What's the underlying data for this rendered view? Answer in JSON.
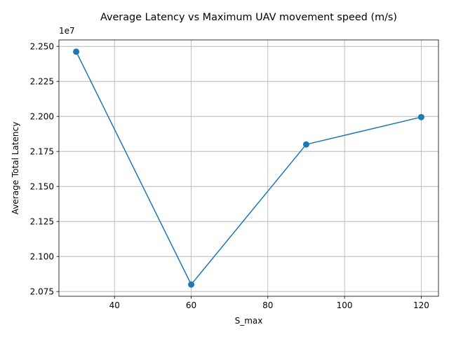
{
  "chart_data": {
    "type": "line",
    "title": "Average Latency vs Maximum UAV movement speed (m/s)",
    "xlabel": "S_max",
    "ylabel": "Average Total Latency",
    "y_offset_label": "1e7",
    "y_scale_factor": 10000000,
    "x": [
      30,
      60,
      90,
      120
    ],
    "y": [
      22462000,
      20800000,
      21800000,
      21995000
    ],
    "xlim": [
      25.5,
      124.5
    ],
    "ylim": [
      20716000,
      22546000
    ],
    "x_ticks": [
      40,
      60,
      80,
      100,
      120
    ],
    "x_tick_labels": [
      "40",
      "60",
      "80",
      "100",
      "120"
    ],
    "y_ticks": [
      20750000,
      21000000,
      21250000,
      21500000,
      21750000,
      22000000,
      22250000,
      22500000
    ],
    "y_tick_labels": [
      "2.075",
      "2.100",
      "2.125",
      "2.150",
      "2.175",
      "2.200",
      "2.225",
      "2.250"
    ],
    "grid": true,
    "marker": "circle",
    "line_color": "#1f77b4"
  }
}
